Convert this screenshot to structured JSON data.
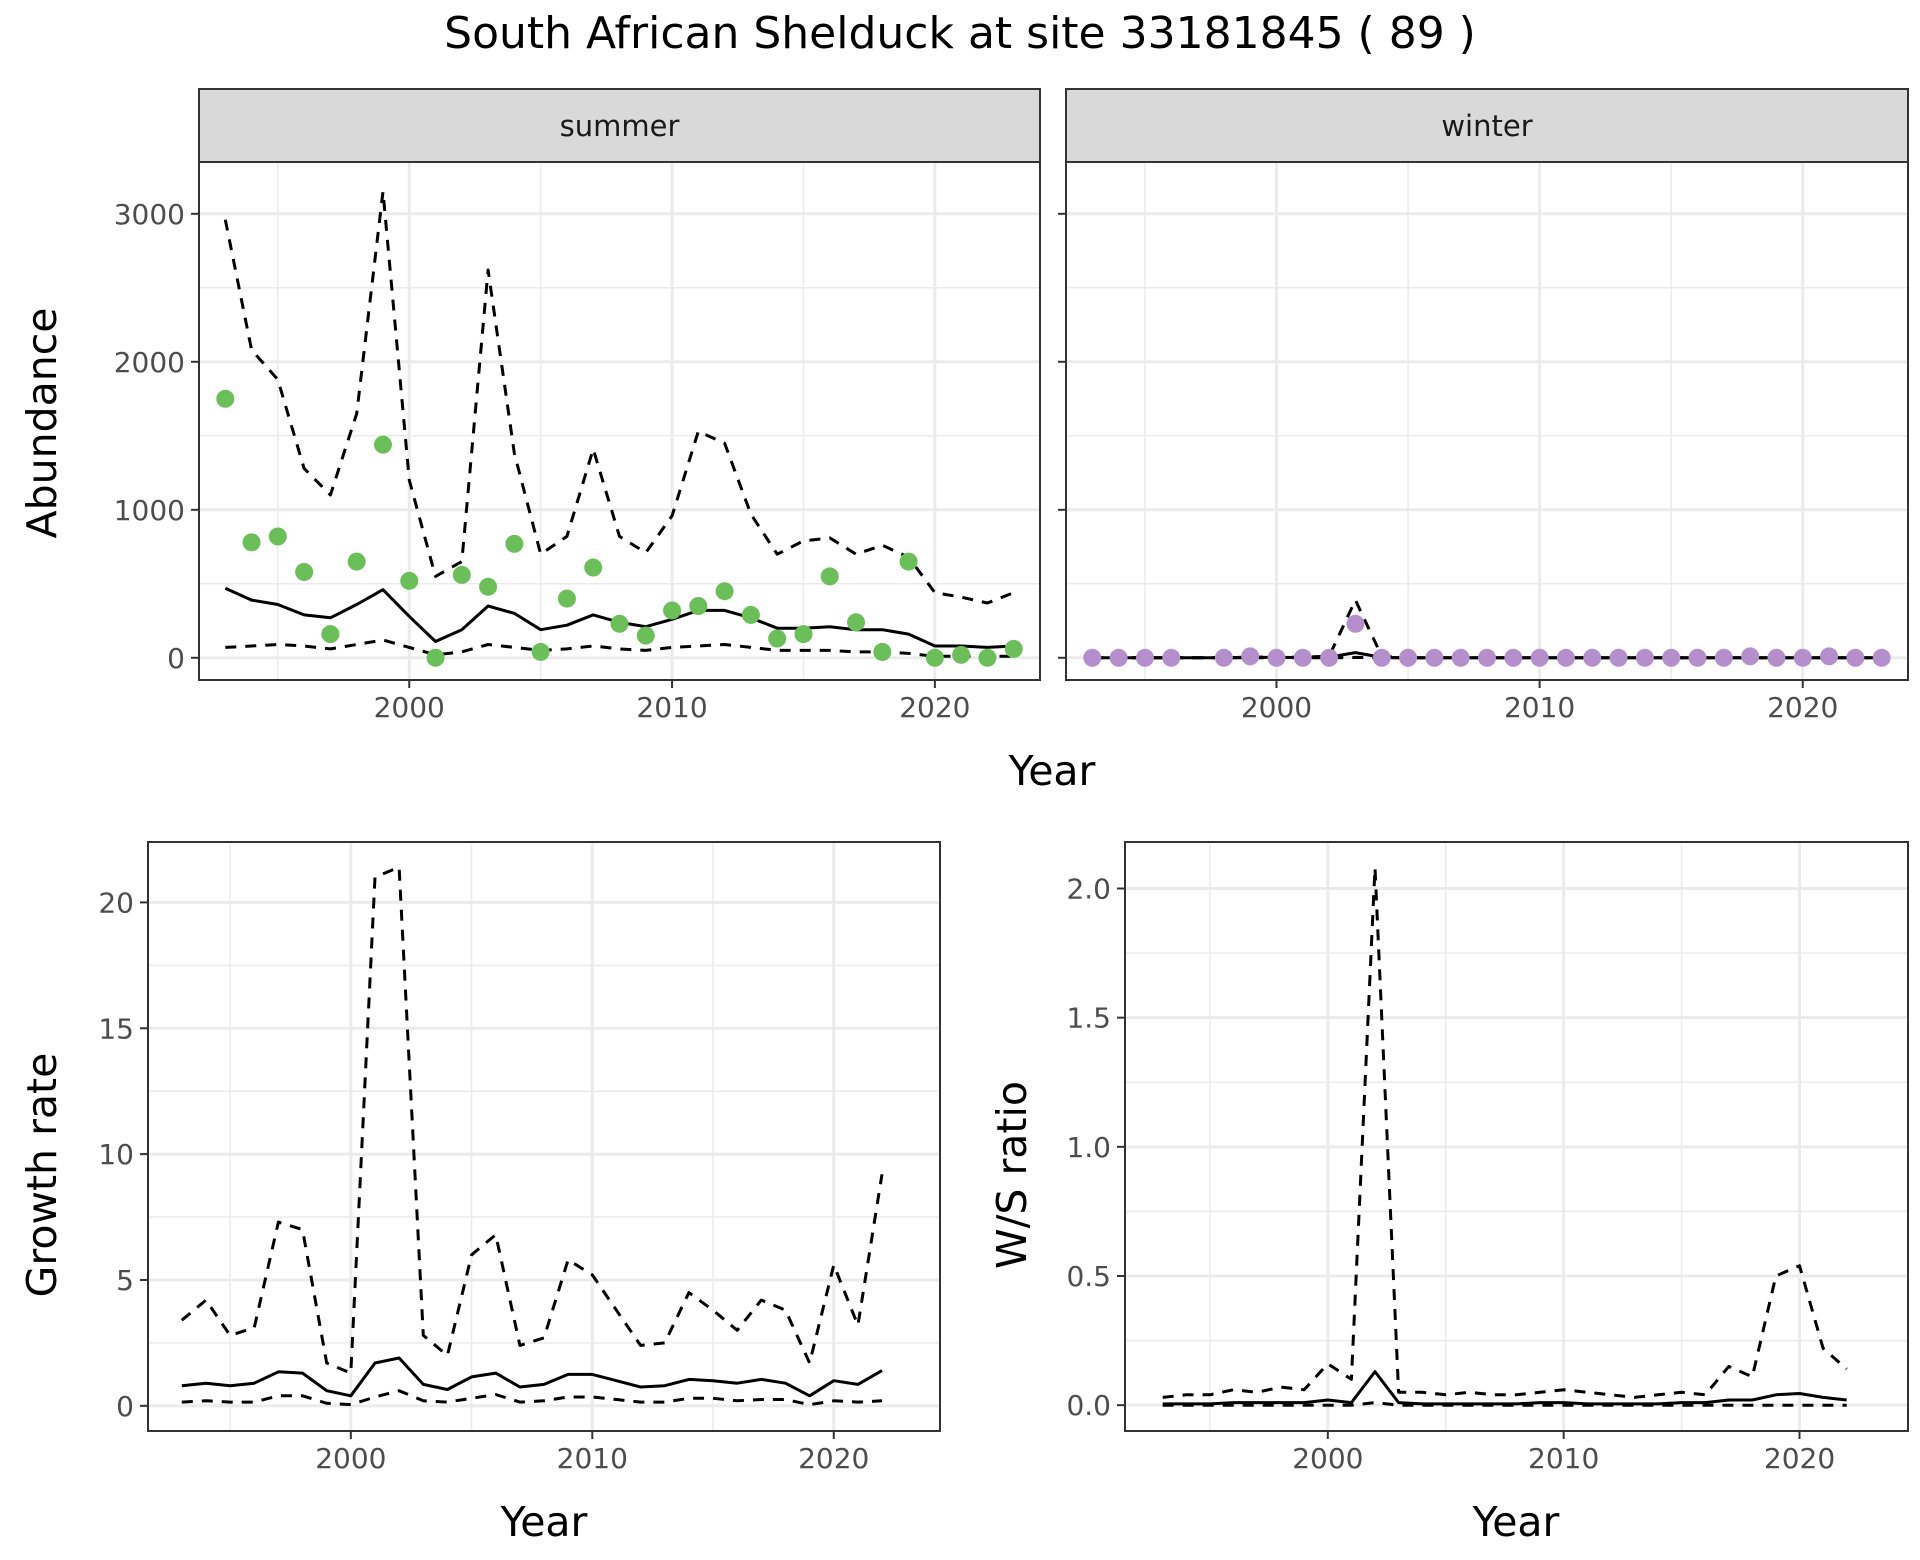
{
  "title": "South African Shelduck at site 33181845 ( 89 )",
  "colors": {
    "summer_points": "#6bbf59",
    "winter_points": "#b48fcc",
    "line": "#000000",
    "grid": "#ebebeb",
    "strip_fill": "#d9d9d9",
    "strip_border": "#333333"
  },
  "chart_data": [
    {
      "type": "line",
      "panel": "summer",
      "strip_label": "summer",
      "xlabel": "Year",
      "ylabel": "Abundance",
      "xlim": [
        1992,
        2024
      ],
      "ylim": [
        -150,
        3350
      ],
      "x_ticks": [
        2000,
        2010,
        2020
      ],
      "y_ticks": [
        0,
        1000,
        2000,
        3000
      ],
      "points": {
        "x": [
          1993,
          1994,
          1995,
          1996,
          1997,
          1998,
          1999,
          2000,
          2001,
          2002,
          2003,
          2004,
          2005,
          2006,
          2007,
          2008,
          2009,
          2010,
          2011,
          2012,
          2013,
          2014,
          2015,
          2016,
          2017,
          2018,
          2019,
          2020,
          2021,
          2022,
          2023
        ],
        "y": [
          1750,
          780,
          820,
          580,
          160,
          650,
          1440,
          520,
          0,
          560,
          480,
          770,
          40,
          400,
          610,
          230,
          150,
          320,
          350,
          450,
          290,
          130,
          160,
          550,
          240,
          40,
          650,
          0,
          20,
          0,
          60
        ]
      },
      "series": [
        {
          "style": "solid",
          "x": [
            1993,
            1994,
            1995,
            1996,
            1997,
            1998,
            1999,
            2000,
            2001,
            2002,
            2003,
            2004,
            2005,
            2006,
            2007,
            2008,
            2009,
            2010,
            2011,
            2012,
            2013,
            2014,
            2015,
            2016,
            2017,
            2018,
            2019,
            2020,
            2021,
            2022,
            2023
          ],
          "y": [
            470,
            390,
            360,
            290,
            270,
            360,
            460,
            280,
            110,
            190,
            350,
            300,
            190,
            220,
            290,
            240,
            210,
            260,
            320,
            320,
            270,
            200,
            200,
            210,
            190,
            190,
            160,
            80,
            80,
            70,
            80
          ]
        },
        {
          "style": "dashed",
          "x": [
            1993,
            1994,
            1995,
            1996,
            1997,
            1998,
            1999,
            2000,
            2001,
            2002,
            2003,
            2004,
            2005,
            2006,
            2007,
            2008,
            2009,
            2010,
            2011,
            2012,
            2013,
            2014,
            2015,
            2016,
            2017,
            2018,
            2019,
            2020,
            2021,
            2022,
            2023
          ],
          "y": [
            2960,
            2080,
            1880,
            1280,
            1100,
            1650,
            3150,
            1200,
            550,
            650,
            2620,
            1380,
            700,
            820,
            1410,
            820,
            710,
            960,
            1530,
            1450,
            970,
            700,
            790,
            810,
            700,
            760,
            680,
            440,
            410,
            370,
            440
          ]
        },
        {
          "style": "dashed",
          "x": [
            1993,
            1994,
            1995,
            1996,
            1997,
            1998,
            1999,
            2000,
            2001,
            2002,
            2003,
            2004,
            2005,
            2006,
            2007,
            2008,
            2009,
            2010,
            2011,
            2012,
            2013,
            2014,
            2015,
            2016,
            2017,
            2018,
            2019,
            2020,
            2021,
            2022,
            2023
          ],
          "y": [
            70,
            80,
            90,
            80,
            60,
            90,
            120,
            70,
            20,
            40,
            90,
            70,
            50,
            60,
            80,
            60,
            50,
            70,
            80,
            90,
            70,
            50,
            50,
            50,
            40,
            40,
            30,
            10,
            10,
            10,
            10
          ]
        }
      ]
    },
    {
      "type": "line",
      "panel": "winter",
      "strip_label": "winter",
      "xlabel": "Year",
      "ylabel": "Abundance",
      "xlim": [
        1992,
        2024
      ],
      "ylim": [
        -150,
        3350
      ],
      "x_ticks": [
        2000,
        2010,
        2020
      ],
      "y_ticks": [
        0,
        1000,
        2000,
        3000
      ],
      "points": {
        "x": [
          1993,
          1994,
          1995,
          1996,
          1998,
          1999,
          2000,
          2001,
          2002,
          2003,
          2004,
          2005,
          2006,
          2007,
          2008,
          2009,
          2010,
          2011,
          2012,
          2013,
          2014,
          2015,
          2016,
          2017,
          2018,
          2019,
          2020,
          2021,
          2022,
          2023
        ],
        "y": [
          0,
          0,
          0,
          0,
          0,
          10,
          0,
          0,
          0,
          230,
          0,
          0,
          0,
          0,
          0,
          0,
          0,
          0,
          0,
          0,
          0,
          0,
          0,
          0,
          10,
          0,
          0,
          10,
          0,
          0
        ]
      },
      "series": [
        {
          "style": "solid",
          "x": [
            1993,
            1994,
            1995,
            1996,
            1997,
            1998,
            1999,
            2000,
            2001,
            2002,
            2003,
            2004,
            2005,
            2006,
            2007,
            2008,
            2009,
            2010,
            2011,
            2012,
            2013,
            2014,
            2015,
            2016,
            2017,
            2018,
            2019,
            2020,
            2021,
            2022,
            2023
          ],
          "y": [
            0,
            0,
            0,
            0,
            0,
            0,
            3,
            3,
            2,
            5,
            35,
            3,
            0,
            0,
            0,
            0,
            0,
            0,
            0,
            0,
            0,
            0,
            0,
            0,
            0,
            0,
            0,
            0,
            0,
            0,
            0
          ]
        },
        {
          "style": "dashed",
          "x": [
            1993,
            1994,
            1995,
            1996,
            1997,
            1998,
            1999,
            2000,
            2001,
            2002,
            2003,
            2004,
            2005,
            2006,
            2007,
            2008,
            2009,
            2010,
            2011,
            2012,
            2013,
            2014,
            2015,
            2016,
            2017,
            2018,
            2019,
            2020,
            2021,
            2022,
            2023
          ],
          "y": [
            0,
            0,
            0,
            0,
            0,
            0,
            5,
            5,
            5,
            10,
            390,
            10,
            0,
            0,
            0,
            0,
            0,
            0,
            0,
            0,
            0,
            0,
            0,
            0,
            0,
            0,
            0,
            0,
            0,
            0,
            0
          ]
        },
        {
          "style": "dashed",
          "x": [
            1993,
            1994,
            1995,
            1996,
            1997,
            1998,
            1999,
            2000,
            2001,
            2002,
            2003,
            2004,
            2005,
            2006,
            2007,
            2008,
            2009,
            2010,
            2011,
            2012,
            2013,
            2014,
            2015,
            2016,
            2017,
            2018,
            2019,
            2020,
            2021,
            2022,
            2023
          ],
          "y": [
            0,
            0,
            0,
            0,
            0,
            0,
            0,
            0,
            0,
            0,
            3,
            0,
            0,
            0,
            0,
            0,
            0,
            0,
            0,
            0,
            0,
            0,
            0,
            0,
            0,
            0,
            0,
            0,
            0,
            0,
            0
          ]
        }
      ]
    },
    {
      "type": "line",
      "panel": "growth",
      "xlabel": "Year",
      "ylabel": "Growth rate",
      "xlim": [
        1991.6,
        2024.4
      ],
      "ylim": [
        -1.0,
        22.4
      ],
      "x_ticks": [
        2000,
        2010,
        2020
      ],
      "y_ticks": [
        0,
        5,
        10,
        15,
        20
      ],
      "series": [
        {
          "style": "solid",
          "x": [
            1993,
            1994,
            1995,
            1996,
            1997,
            1998,
            1999,
            2000,
            2001,
            2002,
            2003,
            2004,
            2005,
            2006,
            2007,
            2008,
            2009,
            2010,
            2011,
            2012,
            2013,
            2014,
            2015,
            2016,
            2017,
            2018,
            2019,
            2020,
            2021,
            2022
          ],
          "y": [
            0.8,
            0.9,
            0.8,
            0.9,
            1.35,
            1.3,
            0.6,
            0.4,
            1.7,
            1.9,
            0.85,
            0.65,
            1.15,
            1.3,
            0.75,
            0.85,
            1.25,
            1.25,
            1.0,
            0.75,
            0.8,
            1.05,
            1.0,
            0.9,
            1.05,
            0.9,
            0.4,
            1.0,
            0.85,
            1.4
          ]
        },
        {
          "style": "dashed",
          "x": [
            1993,
            1994,
            1995,
            1996,
            1997,
            1998,
            1999,
            2000,
            2001,
            2002,
            2003,
            2004,
            2005,
            2006,
            2007,
            2008,
            2009,
            2010,
            2011,
            2012,
            2013,
            2014,
            2015,
            2016,
            2017,
            2018,
            2019,
            2020,
            2021,
            2022
          ],
          "y": [
            3.4,
            4.2,
            2.8,
            3.1,
            7.3,
            7.0,
            1.7,
            1.3,
            21.0,
            21.4,
            2.8,
            2.0,
            6.0,
            6.8,
            2.4,
            2.7,
            5.8,
            5.2,
            3.8,
            2.4,
            2.5,
            4.5,
            3.8,
            3.0,
            4.2,
            3.8,
            1.7,
            5.6,
            3.2,
            9.2
          ]
        },
        {
          "style": "dashed",
          "x": [
            1993,
            1994,
            1995,
            1996,
            1997,
            1998,
            1999,
            2000,
            2001,
            2002,
            2003,
            2004,
            2005,
            2006,
            2007,
            2008,
            2009,
            2010,
            2011,
            2012,
            2013,
            2014,
            2015,
            2016,
            2017,
            2018,
            2019,
            2020,
            2021,
            2022
          ],
          "y": [
            0.15,
            0.2,
            0.15,
            0.15,
            0.4,
            0.4,
            0.1,
            0.05,
            0.35,
            0.6,
            0.2,
            0.15,
            0.3,
            0.45,
            0.15,
            0.2,
            0.35,
            0.35,
            0.25,
            0.15,
            0.15,
            0.3,
            0.3,
            0.2,
            0.25,
            0.25,
            0.05,
            0.2,
            0.15,
            0.2
          ]
        }
      ]
    },
    {
      "type": "line",
      "panel": "ratio",
      "xlabel": "Year",
      "ylabel": "W/S ratio",
      "xlim": [
        1991.4,
        2024.6
      ],
      "ylim": [
        -0.1,
        2.18
      ],
      "x_ticks": [
        2000,
        2010,
        2020
      ],
      "y_ticks": [
        0.0,
        0.5,
        1.0,
        1.5,
        2.0
      ],
      "y_tick_labels": [
        "0.0",
        "0.5",
        "1.0",
        "1.5",
        "2.0"
      ],
      "series": [
        {
          "style": "solid",
          "x": [
            1993,
            1994,
            1995,
            1996,
            1997,
            1998,
            1999,
            2000,
            2001,
            2002,
            2003,
            2004,
            2005,
            2006,
            2007,
            2008,
            2009,
            2010,
            2011,
            2012,
            2013,
            2014,
            2015,
            2016,
            2017,
            2018,
            2019,
            2020,
            2021,
            2022
          ],
          "y": [
            0.005,
            0.005,
            0.005,
            0.01,
            0.01,
            0.01,
            0.01,
            0.02,
            0.01,
            0.13,
            0.01,
            0.005,
            0.005,
            0.005,
            0.005,
            0.005,
            0.01,
            0.01,
            0.005,
            0.005,
            0.005,
            0.005,
            0.01,
            0.01,
            0.02,
            0.02,
            0.04,
            0.045,
            0.03,
            0.02
          ]
        },
        {
          "style": "dashed",
          "x": [
            1993,
            1994,
            1995,
            1996,
            1997,
            1998,
            1999,
            2000,
            2001,
            2002,
            2003,
            2004,
            2005,
            2006,
            2007,
            2008,
            2009,
            2010,
            2011,
            2012,
            2013,
            2014,
            2015,
            2016,
            2017,
            2018,
            2019,
            2020,
            2021,
            2022
          ],
          "y": [
            0.03,
            0.04,
            0.04,
            0.06,
            0.05,
            0.07,
            0.06,
            0.16,
            0.1,
            2.08,
            0.05,
            0.05,
            0.04,
            0.05,
            0.04,
            0.04,
            0.05,
            0.06,
            0.05,
            0.04,
            0.03,
            0.04,
            0.05,
            0.04,
            0.15,
            0.11,
            0.5,
            0.54,
            0.22,
            0.14
          ]
        },
        {
          "style": "dashed",
          "x": [
            1993,
            1994,
            1995,
            1996,
            1997,
            1998,
            1999,
            2000,
            2001,
            2002,
            2003,
            2004,
            2005,
            2006,
            2007,
            2008,
            2009,
            2010,
            2011,
            2012,
            2013,
            2014,
            2015,
            2016,
            2017,
            2018,
            2019,
            2020,
            2021,
            2022
          ],
          "y": [
            0,
            0,
            0,
            0,
            0,
            0,
            0,
            0,
            0,
            0.01,
            0,
            0,
            0,
            0,
            0,
            0,
            0,
            0,
            0,
            0,
            0,
            0,
            0,
            0,
            0,
            0,
            0,
            0,
            0,
            0
          ]
        }
      ]
    }
  ]
}
